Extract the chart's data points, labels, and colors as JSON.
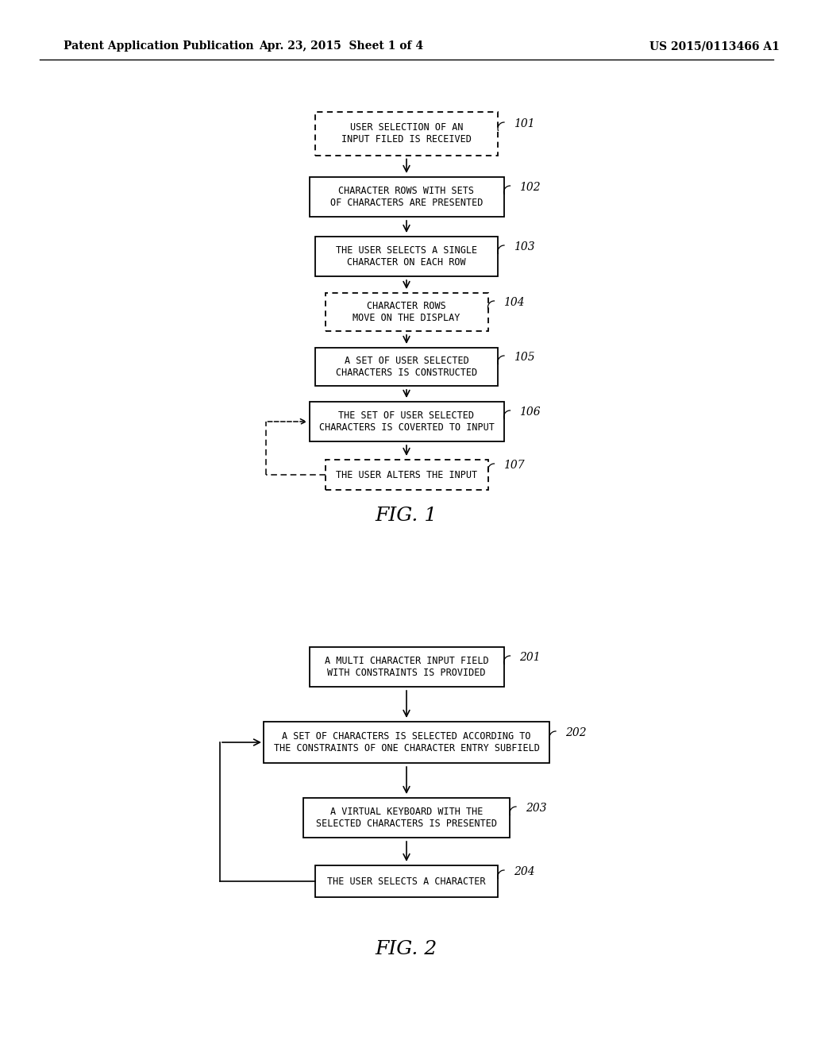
{
  "header_left": "Patent Application Publication",
  "header_mid": "Apr. 23, 2015  Sheet 1 of 4",
  "header_right": "US 2015/0113466 A1",
  "fig1_label": "FIG. 1",
  "fig2_label": "FIG. 2",
  "bg_color": "#ffffff",
  "text_color": "#000000"
}
